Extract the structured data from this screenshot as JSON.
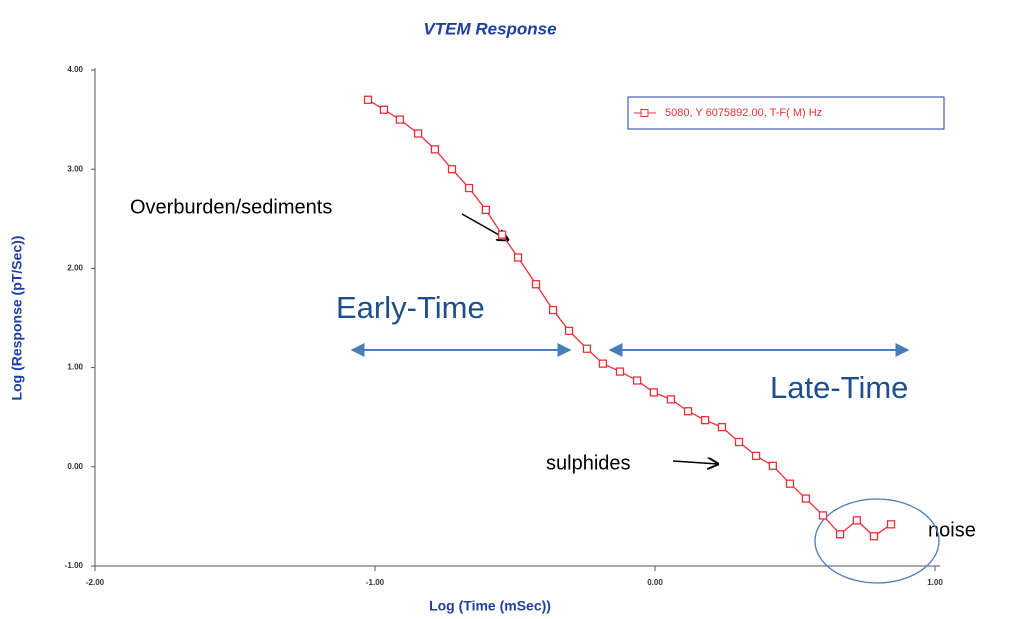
{
  "chart_data": {
    "type": "line",
    "title": "VTEM Response",
    "x_label": "Log (Time (mSec))",
    "y_label": "Log (Response (pT/Sec))",
    "xlim": [
      -2,
      1
    ],
    "ylim": [
      -1,
      4
    ],
    "xticks": [
      {
        "value": -2,
        "label": "-2.00"
      },
      {
        "value": -1,
        "label": "-1.00"
      },
      {
        "value": 0,
        "label": "0.00"
      },
      {
        "value": 1,
        "label": "1.00"
      }
    ],
    "yticks": [
      {
        "value": -1,
        "label": "-1.00"
      },
      {
        "value": 0,
        "label": "0.00"
      },
      {
        "value": 1,
        "label": "1.00"
      },
      {
        "value": 2,
        "label": "2.00"
      },
      {
        "value": 3,
        "label": "3.00"
      },
      {
        "value": 4,
        "label": "4.00"
      }
    ],
    "grid": false,
    "legend": "top-right",
    "series": [
      {
        "name": "5080, Y 6075892.00, T-F( M) Hz",
        "color": "#e8303a",
        "x": [
          -1.025,
          -0.968,
          -0.911,
          -0.846,
          -0.786,
          -0.725,
          -0.664,
          -0.604,
          -0.546,
          -0.489,
          -0.425,
          -0.364,
          -0.307,
          -0.243,
          -0.186,
          -0.125,
          -0.064,
          -0.004,
          0.057,
          0.118,
          0.179,
          0.239,
          0.3,
          0.361,
          0.421,
          0.482,
          0.539,
          0.6,
          0.661,
          0.721,
          0.782,
          0.843
        ],
        "values": [
          3.7,
          3.6,
          3.5,
          3.36,
          3.2,
          3.0,
          2.81,
          2.59,
          2.34,
          2.11,
          1.84,
          1.58,
          1.37,
          1.19,
          1.04,
          0.96,
          0.87,
          0.75,
          0.68,
          0.56,
          0.47,
          0.4,
          0.25,
          0.11,
          0.01,
          -0.17,
          -0.32,
          -0.49,
          -0.68,
          -0.54,
          -0.7,
          -0.58
        ]
      }
    ],
    "annotations": [
      "Overburden/sediments",
      "Early-Time",
      "Late-Time",
      "sulphides",
      "noise"
    ]
  }
}
